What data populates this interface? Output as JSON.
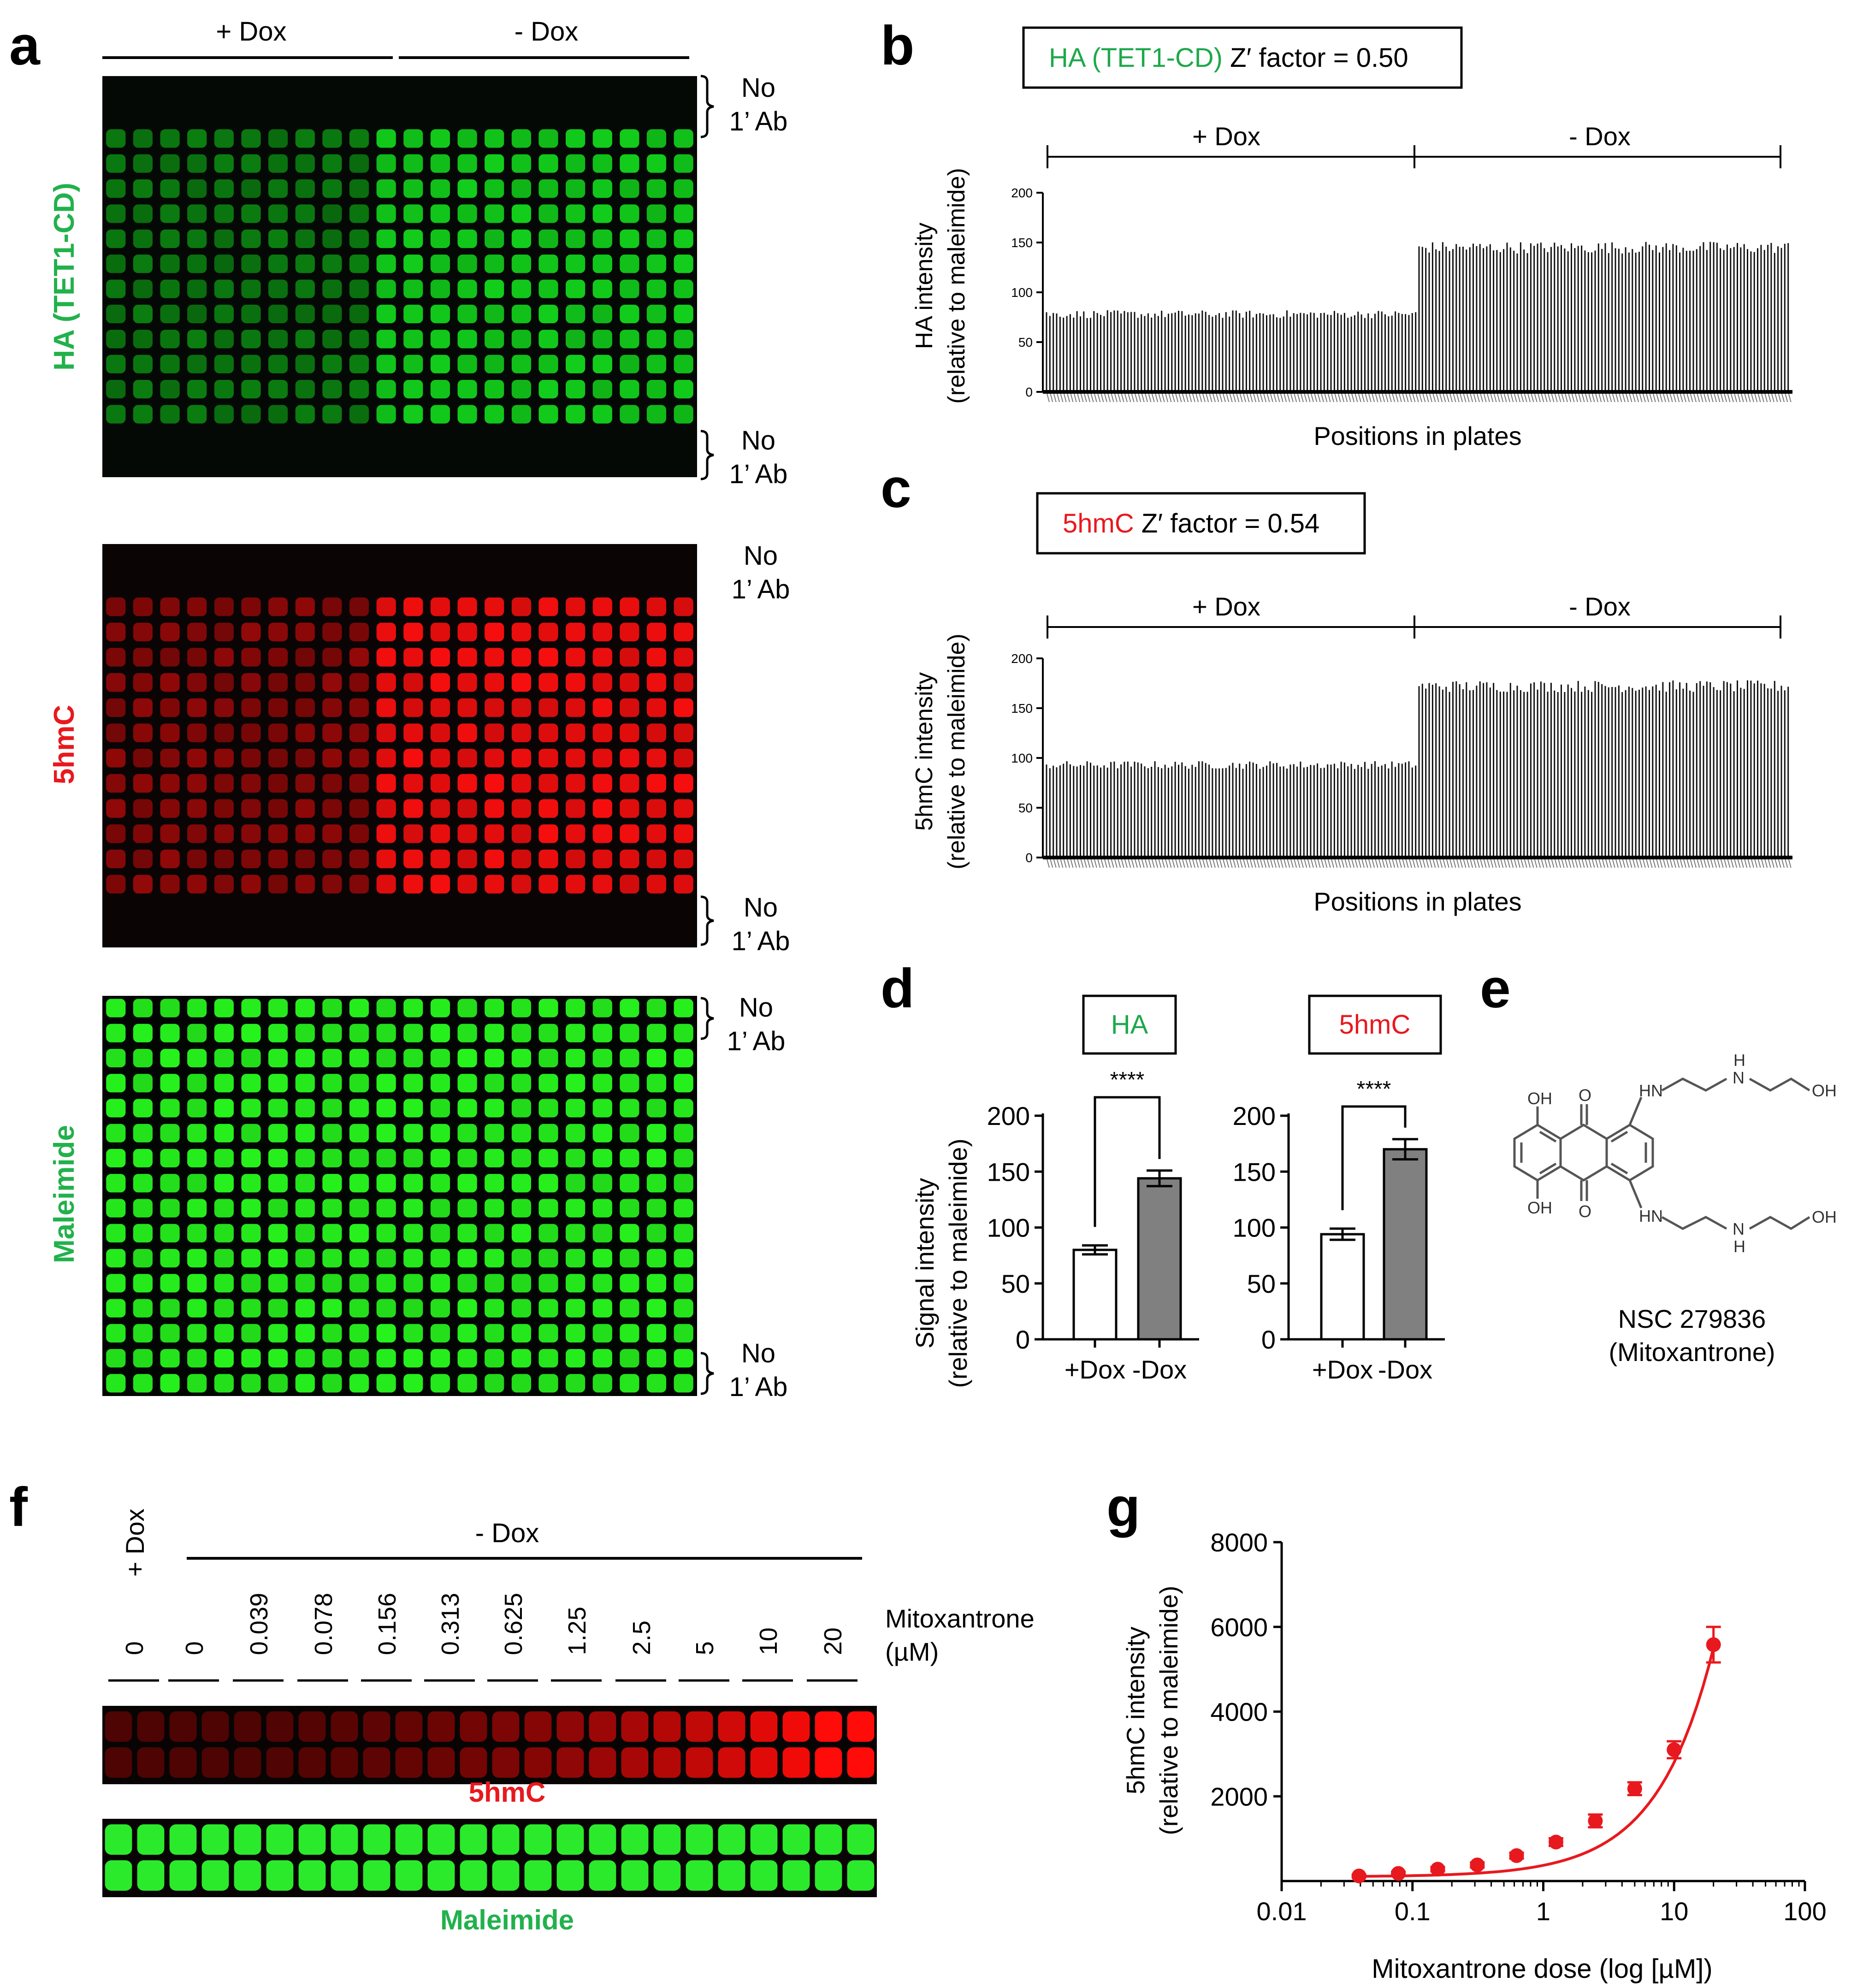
{
  "panels": {
    "a": {
      "label": "a",
      "top_bracket_left": "+ Dox",
      "top_bracket_right": "- Dox",
      "no_ab_line1": "No",
      "no_ab_line2": "1’ Ab",
      "blots": [
        {
          "name": "HA (TET1-CD)",
          "color": "#22b14c"
        },
        {
          "name": "5hmC",
          "color": "#e8191e"
        },
        {
          "name": "Maleimide",
          "color": "#22b14c"
        }
      ],
      "grid": {
        "columns": 22,
        "rows": 16,
        "plus_dox_columns": 10
      }
    },
    "b": {
      "label": "b",
      "box_prefix": "HA (TET1-CD)",
      "box_suffix": " Z′ factor = 0.50",
      "prefix_color": "#1fa84b",
      "ylabel_1": "HA intensity",
      "ylabel_2": "(relative to maleimide)",
      "xlabel": "Positions in plates",
      "bracket_left": "+ Dox",
      "bracket_right": "- Dox",
      "yticks": [
        "0",
        "50",
        "100",
        "150",
        "200"
      ]
    },
    "c": {
      "label": "c",
      "box_prefix": "5hmC",
      "box_suffix": " Z′ factor = 0.54",
      "prefix_color": "#e8191e",
      "ylabel_1": "5hmC intensity",
      "ylabel_2": "(relative to maleimide)",
      "xlabel": "Positions in plates",
      "bracket_left": "+ Dox",
      "bracket_right": "- Dox",
      "yticks": [
        "0",
        "50",
        "100",
        "150",
        "200"
      ]
    },
    "d": {
      "label": "d",
      "ylabel_1": "Signal intensity",
      "ylabel_2": "(relative to maleimide)",
      "yticks": [
        "0",
        "50",
        "100",
        "150",
        "200"
      ],
      "significance": "****",
      "charts": [
        {
          "title": "HA",
          "title_color": "#1fa84b"
        },
        {
          "title": "5hmC",
          "title_color": "#e8191e"
        }
      ]
    },
    "e": {
      "label": "e",
      "compound_line1": "NSC 279836",
      "compound_line2": "(Mitoxantrone)",
      "atoms": {
        "oh": "OH",
        "o": "O",
        "hn": "HN",
        "h": "H",
        "n": "N"
      }
    },
    "f": {
      "label": "f",
      "plus_dox": "+ Dox",
      "minus_dox": "- Dox",
      "doses": [
        "0",
        "0",
        "0.039",
        "0.078",
        "0.156",
        "0.313",
        "0.625",
        "1.25",
        "2.5",
        "5",
        "10",
        "20"
      ],
      "legend_line1": "Mitoxantrone",
      "legend_line2": "(µM)",
      "strip1_label": "5hmC",
      "strip2_label": "Maleimide",
      "strip1_color": "#e8191e",
      "strip2_color": "#22b14c"
    },
    "g": {
      "label": "g",
      "curve_color": "#e8191e"
    }
  },
  "chart_data": [
    {
      "type": "bar",
      "panel": "b",
      "title": "HA (TET1-CD) Z′ factor = 0.50",
      "xlabel": "Positions in plates",
      "ylabel": "HA intensity (relative to maleimide)",
      "ylim": [
        0,
        200
      ],
      "groups": [
        {
          "name": "+ Dox",
          "count": 110,
          "mean": 78,
          "jitter": 4
        },
        {
          "name": "- Dox",
          "count": 110,
          "mean": 145,
          "jitter": 6
        }
      ]
    },
    {
      "type": "bar",
      "panel": "c",
      "title": "5hmC Z′ factor = 0.54",
      "xlabel": "Positions in plates",
      "ylabel": "5hmC intensity (relative to maleimide)",
      "ylim": [
        0,
        200
      ],
      "groups": [
        {
          "name": "+ Dox",
          "count": 110,
          "mean": 93,
          "jitter": 4
        },
        {
          "name": "- Dox",
          "count": 110,
          "mean": 172,
          "jitter": 6
        }
      ]
    },
    {
      "type": "bar",
      "panel": "d",
      "title": "HA",
      "ylabel": "Signal intensity (relative to maleimide)",
      "categories": [
        "+Dox",
        "-Dox"
      ],
      "values": [
        80,
        144
      ],
      "errors": [
        4,
        7
      ],
      "ylim": [
        0,
        200
      ],
      "significance": "****"
    },
    {
      "type": "bar",
      "panel": "d",
      "title": "5hmC",
      "ylabel": "Signal intensity (relative to maleimide)",
      "categories": [
        "+Dox",
        "-Dox"
      ],
      "values": [
        94,
        170
      ],
      "errors": [
        5,
        9
      ],
      "ylim": [
        0,
        200
      ],
      "significance": "****"
    },
    {
      "type": "scatter",
      "panel": "g",
      "xlabel": "Mitoxantrone dose (log [µM])",
      "ylabel": "5hmC intensity (relative to maleimide)",
      "xscale": "log",
      "xlim": [
        0.01,
        100
      ],
      "ylim": [
        0,
        8000
      ],
      "xticks": [
        "0.01",
        "0.1",
        "1",
        "10",
        "100"
      ],
      "yticks": [
        "2000",
        "4000",
        "6000",
        "8000"
      ],
      "x": [
        0.039,
        0.078,
        0.156,
        0.313,
        0.625,
        1.25,
        2.5,
        5,
        10,
        20
      ],
      "y": [
        120,
        180,
        280,
        380,
        600,
        920,
        1420,
        2180,
        3100,
        5580
      ],
      "errors": [
        30,
        40,
        50,
        60,
        70,
        90,
        150,
        150,
        200,
        420
      ]
    }
  ]
}
